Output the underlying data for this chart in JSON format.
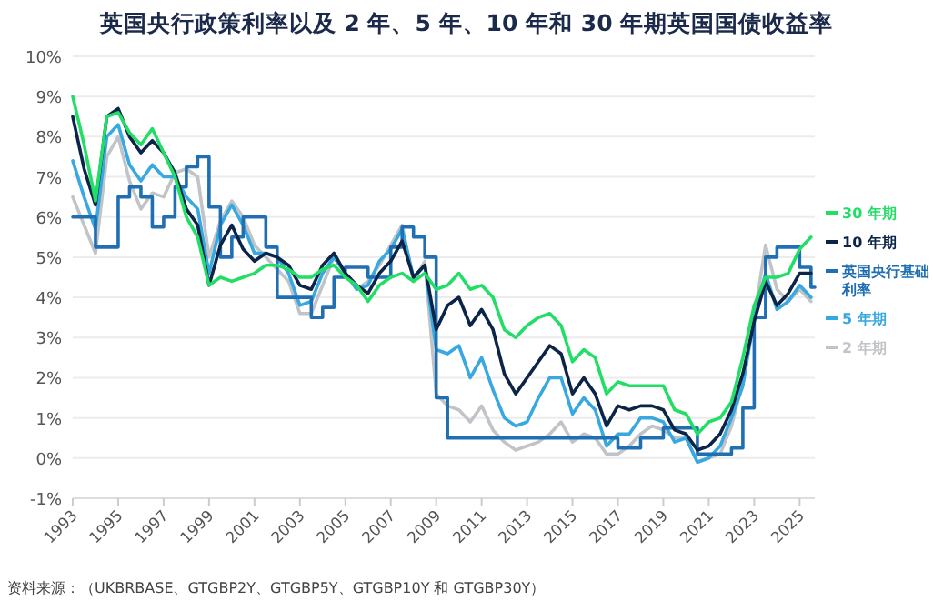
{
  "chart_data": {
    "type": "line",
    "title": "英国央行政策利率以及 2 年、5 年、10 年和 30 年期英国国债收益率",
    "annotations": [
      "资料来源：（UKBRBASE、GTGBP2Y、GTGBP5Y、GTGBP10Y 和 GTGBP30Y）"
    ],
    "x": [
      "1993-01",
      "1993-07",
      "1994-01",
      "1994-07",
      "1995-01",
      "1995-07",
      "1996-01",
      "1996-07",
      "1997-01",
      "1997-07",
      "1998-01",
      "1998-07",
      "1999-01",
      "1999-07",
      "2000-01",
      "2000-07",
      "2001-01",
      "2001-07",
      "2002-01",
      "2002-07",
      "2003-01",
      "2003-07",
      "2004-01",
      "2004-07",
      "2005-01",
      "2005-07",
      "2006-01",
      "2006-07",
      "2007-01",
      "2007-07",
      "2008-01",
      "2008-07",
      "2009-01",
      "2009-07",
      "2010-01",
      "2010-07",
      "2011-01",
      "2011-07",
      "2012-01",
      "2012-07",
      "2013-01",
      "2013-07",
      "2014-01",
      "2014-07",
      "2015-01",
      "2015-07",
      "2016-01",
      "2016-07",
      "2017-01",
      "2017-07",
      "2018-01",
      "2018-07",
      "2019-01",
      "2019-07",
      "2020-01",
      "2020-07",
      "2021-01",
      "2021-07",
      "2022-01",
      "2022-07",
      "2023-01",
      "2023-07",
      "2024-01",
      "2024-07",
      "2025-01",
      "2025-07"
    ],
    "series": [
      {
        "name": "30 年期",
        "color": "#22dd66",
        "values": [
          9.0,
          7.8,
          6.4,
          8.5,
          8.6,
          8.1,
          7.8,
          8.2,
          7.6,
          7.0,
          6.0,
          5.5,
          4.3,
          4.5,
          4.4,
          4.5,
          4.6,
          4.8,
          4.8,
          4.7,
          4.5,
          4.5,
          4.7,
          4.8,
          4.5,
          4.3,
          3.9,
          4.3,
          4.5,
          4.6,
          4.4,
          4.6,
          4.2,
          4.3,
          4.6,
          4.2,
          4.3,
          4.0,
          3.2,
          3.0,
          3.3,
          3.5,
          3.6,
          3.3,
          2.4,
          2.7,
          2.5,
          1.6,
          1.9,
          1.8,
          1.8,
          1.8,
          1.8,
          1.2,
          1.1,
          0.6,
          0.9,
          1.0,
          1.4,
          2.5,
          3.8,
          4.5,
          4.5,
          4.6,
          5.2,
          5.5
        ]
      },
      {
        "name": "10 年期",
        "color": "#0b2447",
        "values": [
          8.5,
          7.2,
          6.3,
          8.5,
          8.7,
          8.0,
          7.6,
          7.9,
          7.6,
          7.1,
          6.2,
          5.8,
          4.3,
          5.3,
          5.8,
          5.2,
          4.9,
          5.1,
          5.0,
          4.8,
          4.3,
          4.2,
          4.8,
          5.1,
          4.6,
          4.3,
          4.1,
          4.6,
          4.9,
          5.4,
          4.5,
          4.8,
          3.2,
          3.8,
          4.0,
          3.3,
          3.7,
          3.2,
          2.1,
          1.6,
          2.0,
          2.4,
          2.8,
          2.6,
          1.6,
          2.0,
          1.6,
          0.8,
          1.3,
          1.2,
          1.3,
          1.3,
          1.2,
          0.7,
          0.6,
          0.2,
          0.3,
          0.6,
          1.2,
          2.1,
          3.4,
          4.4,
          3.8,
          4.1,
          4.6,
          4.6
        ]
      },
      {
        "name": "英国央行基础利率",
        "color": "#1f6fb2",
        "type": "step",
        "values": [
          6.0,
          6.0,
          5.25,
          5.25,
          6.5,
          6.75,
          6.5,
          5.75,
          6.0,
          6.75,
          7.25,
          7.5,
          6.25,
          5.0,
          5.5,
          6.0,
          6.0,
          5.25,
          4.0,
          4.0,
          4.0,
          3.5,
          3.75,
          4.5,
          4.75,
          4.75,
          4.5,
          4.5,
          5.25,
          5.75,
          5.5,
          5.0,
          1.5,
          0.5,
          0.5,
          0.5,
          0.5,
          0.5,
          0.5,
          0.5,
          0.5,
          0.5,
          0.5,
          0.5,
          0.5,
          0.5,
          0.5,
          0.5,
          0.25,
          0.25,
          0.5,
          0.5,
          0.75,
          0.75,
          0.75,
          0.1,
          0.1,
          0.1,
          0.25,
          1.25,
          3.5,
          5.0,
          5.25,
          5.25,
          4.75,
          4.25
        ]
      },
      {
        "name": "5 年期",
        "color": "#38a8e0",
        "values": [
          7.4,
          6.5,
          5.7,
          8.0,
          8.3,
          7.3,
          6.9,
          7.3,
          7.0,
          7.0,
          6.5,
          6.2,
          4.6,
          5.8,
          6.3,
          5.8,
          5.1,
          5.1,
          5.0,
          4.6,
          3.8,
          3.9,
          4.6,
          5.0,
          4.6,
          4.2,
          4.3,
          4.9,
          5.2,
          5.7,
          4.5,
          4.8,
          2.7,
          2.6,
          2.8,
          2.0,
          2.5,
          1.7,
          1.0,
          0.8,
          0.9,
          1.5,
          2.0,
          2.0,
          1.1,
          1.5,
          1.2,
          0.3,
          0.6,
          0.6,
          1.0,
          1.0,
          0.9,
          0.4,
          0.5,
          -0.1,
          0.0,
          0.3,
          1.0,
          1.8,
          3.5,
          4.6,
          3.7,
          3.9,
          4.3,
          4.0
        ]
      },
      {
        "name": "2 年期",
        "color": "#c0c4c8",
        "values": [
          6.5,
          5.8,
          5.1,
          7.5,
          8.0,
          6.9,
          6.2,
          6.6,
          6.5,
          7.1,
          7.2,
          7.0,
          5.0,
          5.9,
          6.4,
          6.0,
          5.3,
          5.0,
          4.7,
          4.4,
          3.6,
          3.6,
          4.3,
          5.0,
          4.6,
          4.2,
          4.4,
          4.8,
          5.3,
          5.8,
          4.4,
          4.9,
          1.6,
          1.3,
          1.2,
          0.9,
          1.3,
          0.7,
          0.4,
          0.2,
          0.3,
          0.4,
          0.6,
          0.9,
          0.4,
          0.6,
          0.5,
          0.1,
          0.1,
          0.3,
          0.6,
          0.8,
          0.7,
          0.5,
          0.5,
          -0.1,
          0.0,
          0.1,
          0.8,
          1.9,
          3.5,
          5.3,
          4.2,
          3.9,
          4.2,
          3.9
        ]
      }
    ],
    "xlim": [
      "1993-01",
      "2025-09"
    ],
    "xticks": [
      "1993",
      "1995",
      "1997",
      "1999",
      "2001",
      "2003",
      "2005",
      "2007",
      "2009",
      "2011",
      "2013",
      "2015",
      "2017",
      "2019",
      "2021",
      "2023",
      "2025"
    ],
    "ylim": [
      -1,
      10
    ],
    "yticks": [
      {
        "value": -1,
        "label": "-1%"
      },
      {
        "value": 0,
        "label": "0%"
      },
      {
        "value": 1,
        "label": "1%"
      },
      {
        "value": 2,
        "label": "2%"
      },
      {
        "value": 3,
        "label": "3%"
      },
      {
        "value": 4,
        "label": "4%"
      },
      {
        "value": 5,
        "label": "5%"
      },
      {
        "value": 6,
        "label": "6%"
      },
      {
        "value": 7,
        "label": "7%"
      },
      {
        "value": 8,
        "label": "8%"
      },
      {
        "value": 9,
        "label": "9%"
      },
      {
        "value": 10,
        "label": "10%"
      }
    ],
    "grid": "y",
    "legend": "right",
    "marker": "none",
    "line_style": "solid"
  }
}
